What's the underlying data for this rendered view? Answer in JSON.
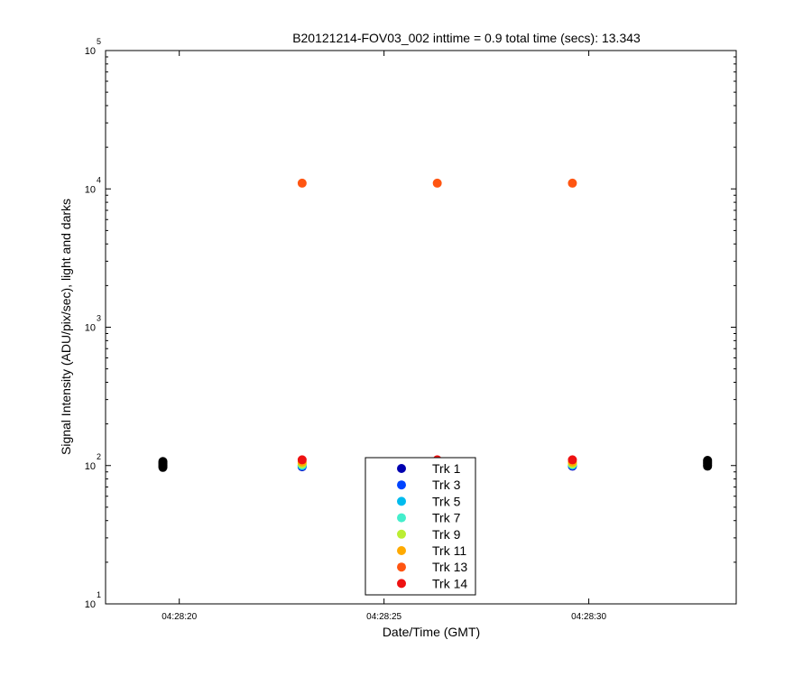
{
  "chart_data": {
    "type": "scatter",
    "title": "B20121214-FOV03_002 inttime = 0.9 total time (secs): 13.343",
    "xlabel": "Date/Time (GMT)",
    "ylabel": "Signal Intensity (ADU/pix/sec), light and darks",
    "yscale": "log",
    "xlim": [
      "04:28:18.2",
      "04:28:33.6"
    ],
    "ylim": [
      10,
      100000
    ],
    "x_ticks": [
      "04:28:20",
      "04:28:25",
      "04:28:30"
    ],
    "y_ticks": [
      {
        "value": 10,
        "base": "10",
        "exp": "1"
      },
      {
        "value": 100,
        "base": "10",
        "exp": "2"
      },
      {
        "value": 1000,
        "base": "10",
        "exp": "3"
      },
      {
        "value": 10000,
        "base": "10",
        "exp": "4"
      },
      {
        "value": 100000,
        "base": "10",
        "exp": "5"
      }
    ],
    "grid": false,
    "legend_position": "bottom-center",
    "series": [
      {
        "name": "Trk 1",
        "color": "#0000b0",
        "points": [
          {
            "x": "04:28:23.0",
            "y": 98
          },
          {
            "x": "04:28:26.3",
            "y": 100
          },
          {
            "x": "04:28:29.6",
            "y": 99
          }
        ]
      },
      {
        "name": "Trk 3",
        "color": "#0044ff",
        "points": [
          {
            "x": "04:28:23.0",
            "y": 99
          },
          {
            "x": "04:28:26.3",
            "y": 101
          },
          {
            "x": "04:28:29.6",
            "y": 100
          }
        ]
      },
      {
        "name": "Trk 5",
        "color": "#00bbee",
        "points": [
          {
            "x": "04:28:23.0",
            "y": 100
          },
          {
            "x": "04:28:26.3",
            "y": 102
          },
          {
            "x": "04:28:29.6",
            "y": 101
          }
        ]
      },
      {
        "name": "Trk 7",
        "color": "#44eecc",
        "points": [
          {
            "x": "04:28:23.0",
            "y": 101
          },
          {
            "x": "04:28:26.3",
            "y": 103
          },
          {
            "x": "04:28:29.6",
            "y": 102
          }
        ]
      },
      {
        "name": "Trk 9",
        "color": "#bbee33",
        "points": [
          {
            "x": "04:28:23.0",
            "y": 103
          },
          {
            "x": "04:28:26.3",
            "y": 104
          },
          {
            "x": "04:28:29.6",
            "y": 103
          }
        ]
      },
      {
        "name": "Trk 11",
        "color": "#ffaa00",
        "points": [
          {
            "x": "04:28:23.0",
            "y": 106
          },
          {
            "x": "04:28:26.3",
            "y": 106
          },
          {
            "x": "04:28:29.6",
            "y": 106
          }
        ]
      },
      {
        "name": "Trk 13",
        "color": "#ff5511",
        "points": [
          {
            "x": "04:28:23.0",
            "y": 11000
          },
          {
            "x": "04:28:26.3",
            "y": 11000
          },
          {
            "x": "04:28:29.6",
            "y": 11000
          }
        ]
      },
      {
        "name": "Trk 14",
        "color": "#ee1111",
        "points": [
          {
            "x": "04:28:23.0",
            "y": 110
          },
          {
            "x": "04:28:26.3",
            "y": 110
          },
          {
            "x": "04:28:29.6",
            "y": 110
          }
        ]
      }
    ],
    "darks": {
      "color": "#000000",
      "points": [
        {
          "x": "04:28:19.6",
          "y": 97
        },
        {
          "x": "04:28:19.6",
          "y": 99
        },
        {
          "x": "04:28:19.6",
          "y": 101
        },
        {
          "x": "04:28:19.6",
          "y": 103
        },
        {
          "x": "04:28:19.6",
          "y": 105
        },
        {
          "x": "04:28:19.6",
          "y": 107
        },
        {
          "x": "04:28:32.9",
          "y": 99
        },
        {
          "x": "04:28:32.9",
          "y": 101
        },
        {
          "x": "04:28:32.9",
          "y": 103
        },
        {
          "x": "04:28:32.9",
          "y": 105
        },
        {
          "x": "04:28:32.9",
          "y": 107
        },
        {
          "x": "04:28:32.9",
          "y": 109
        }
      ]
    }
  }
}
